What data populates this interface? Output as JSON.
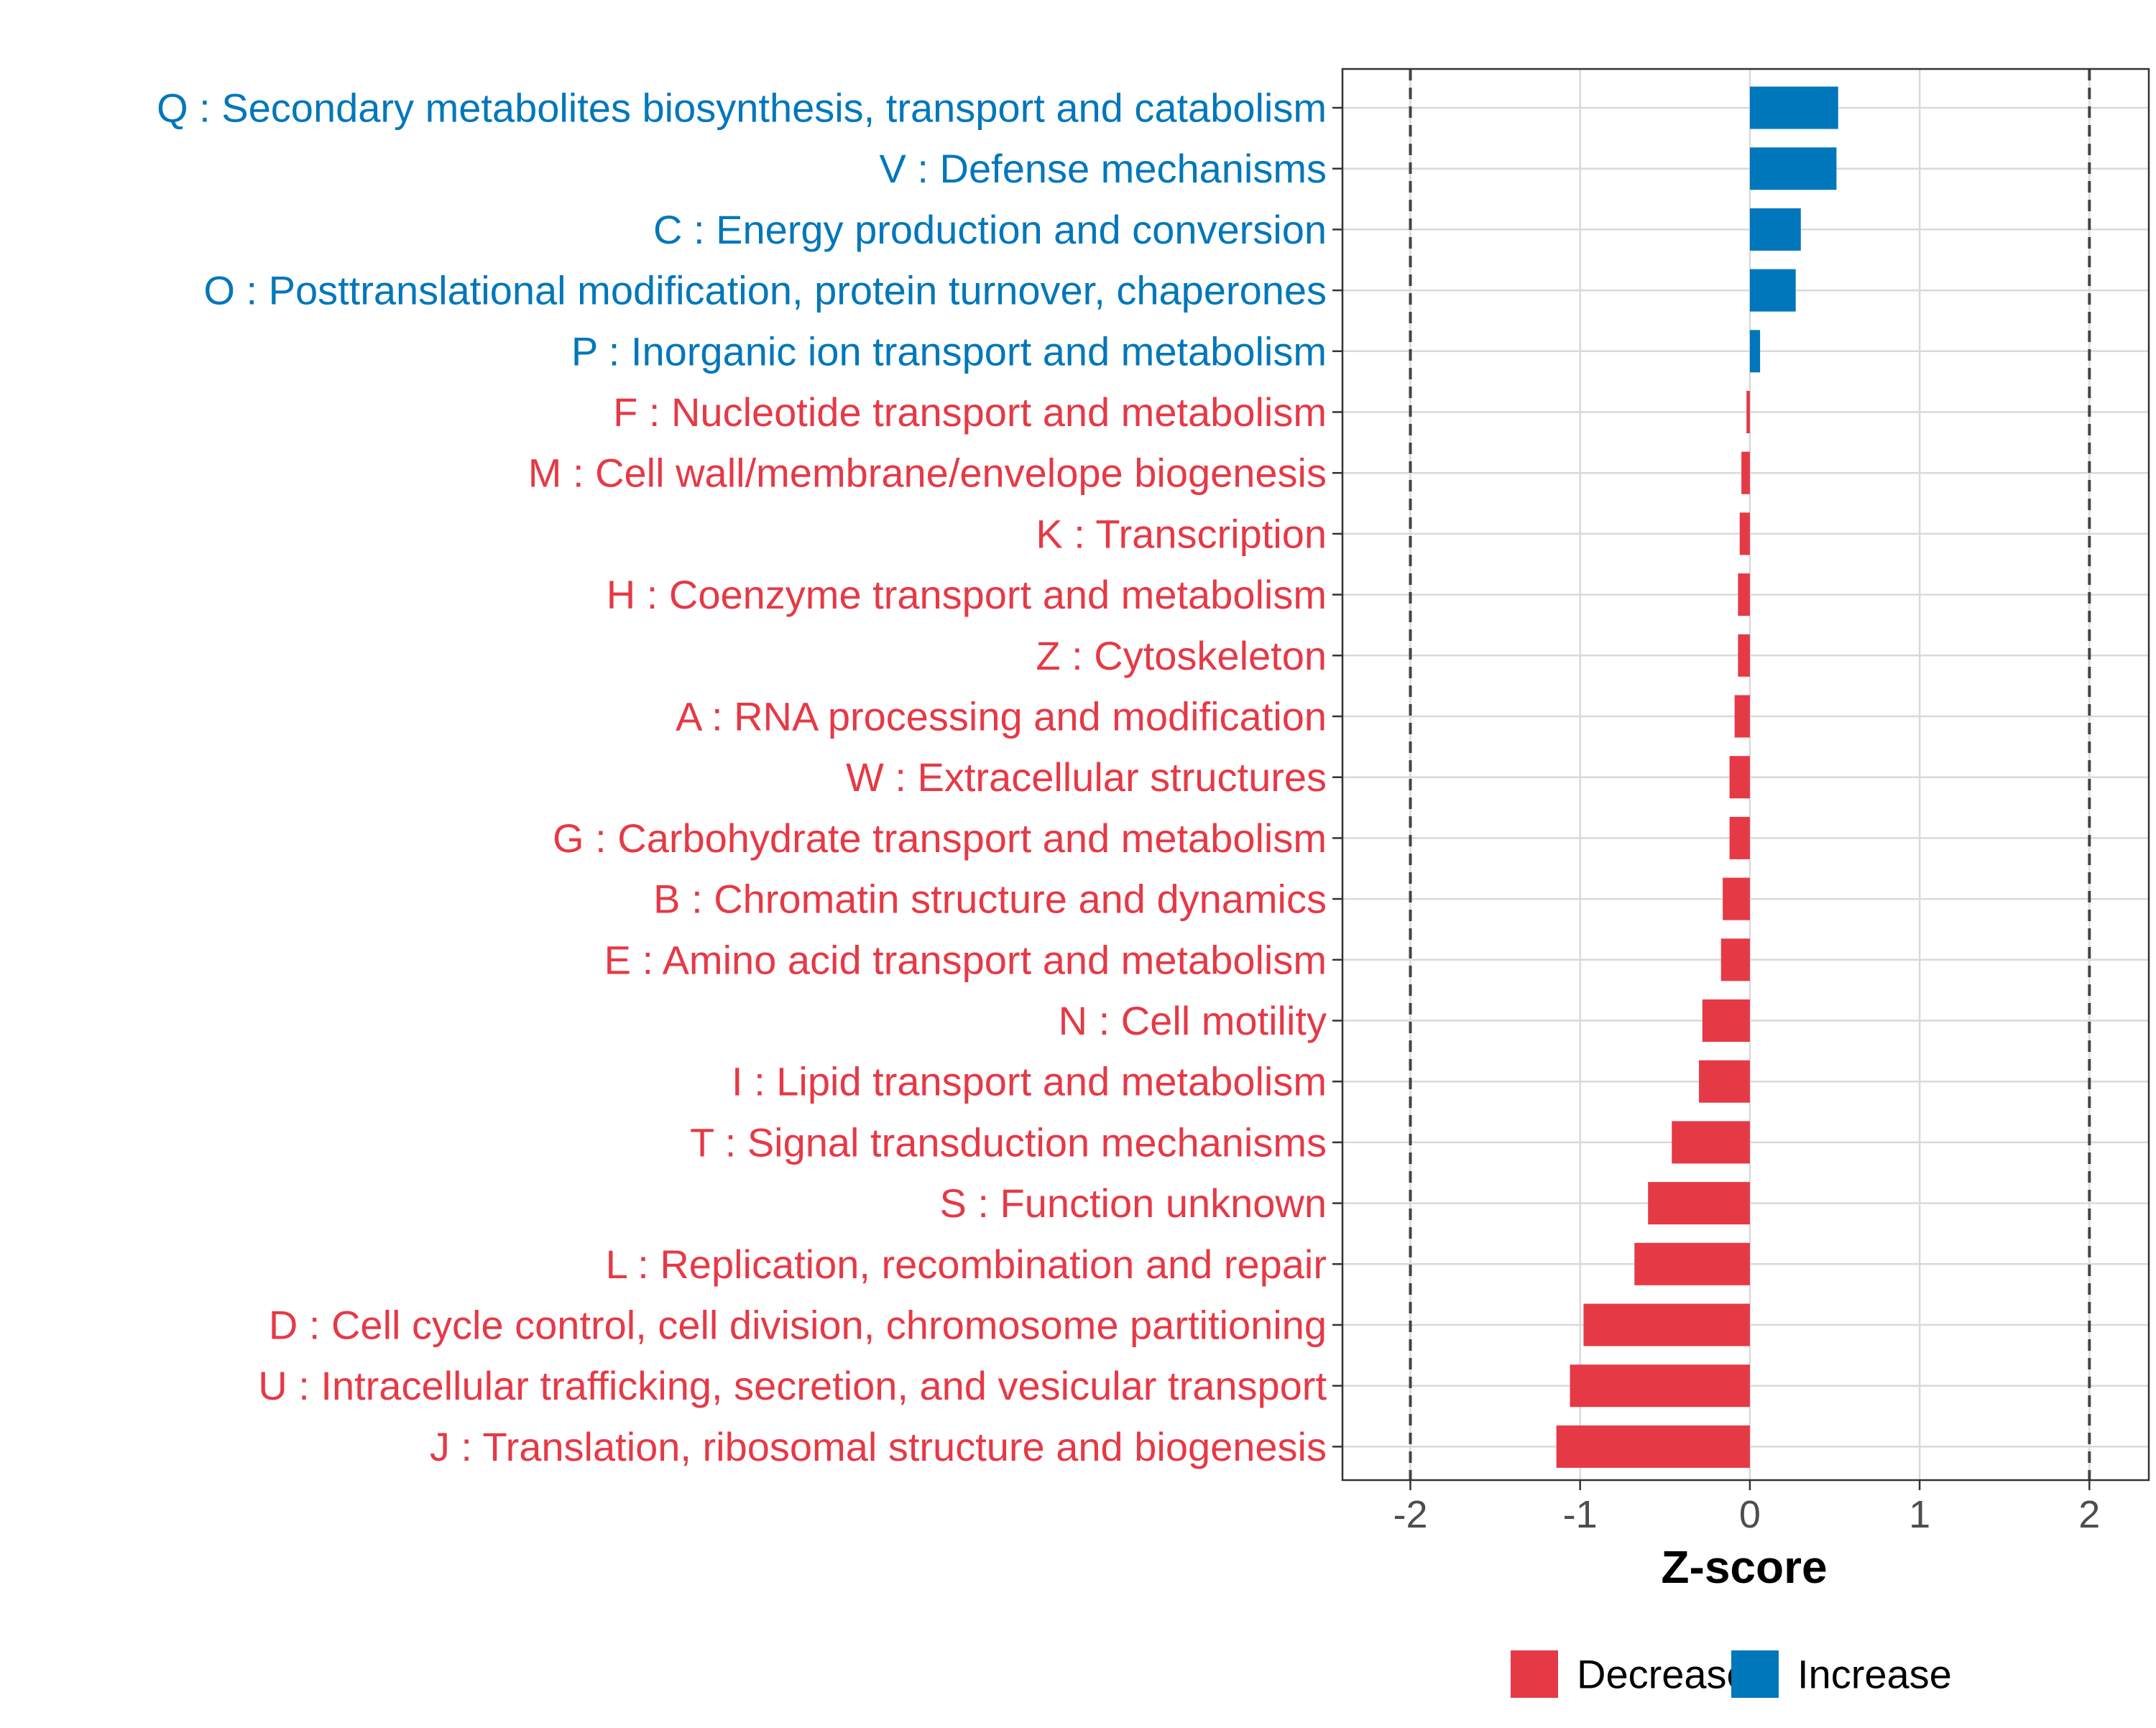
{
  "chart_data": {
    "type": "bar",
    "orientation": "horizontal",
    "title": "",
    "xlabel": "Z-score",
    "ylabel": "",
    "xlim": [
      -2.4,
      2.35
    ],
    "xticks": [
      -2,
      -1,
      0,
      1,
      2
    ],
    "xtick_labels": [
      "-2",
      "-1",
      "0",
      "1",
      "2"
    ],
    "threshold_lines": [
      -2,
      2
    ],
    "grid": true,
    "categories": [
      "Q : Secondary metabolites biosynthesis, transport and catabolism",
      "V : Defense mechanisms",
      "C : Energy production and conversion",
      "O : Posttranslational modification, protein turnover, chaperones",
      "P : Inorganic ion transport and metabolism",
      "F : Nucleotide transport and metabolism",
      "M : Cell wall/membrane/envelope biogenesis",
      "K : Transcription",
      "H : Coenzyme transport and metabolism",
      "Z : Cytoskeleton",
      "A : RNA processing and modification",
      "W : Extracellular structures",
      "G : Carbohydrate transport and metabolism",
      "B : Chromatin structure and dynamics",
      "E : Amino acid transport and metabolism",
      "N : Cell motility",
      "I : Lipid transport and metabolism",
      "T : Signal transduction mechanisms",
      "S : Function unknown",
      "L : Replication, recombination and repair",
      "D : Cell cycle control, cell division, chromosome partitioning",
      "U : Intracellular trafficking, secretion, and vesicular transport",
      "J : Translation, ribosomal structure and biogenesis"
    ],
    "values": [
      0.52,
      0.51,
      0.3,
      0.27,
      0.06,
      -0.02,
      -0.05,
      -0.06,
      -0.07,
      -0.07,
      -0.09,
      -0.12,
      -0.12,
      -0.16,
      -0.17,
      -0.28,
      -0.3,
      -0.46,
      -0.6,
      -0.68,
      -0.98,
      -1.06,
      -1.14
    ],
    "groups": [
      "Increase",
      "Increase",
      "Increase",
      "Increase",
      "Increase",
      "Decrease",
      "Decrease",
      "Decrease",
      "Decrease",
      "Decrease",
      "Decrease",
      "Decrease",
      "Decrease",
      "Decrease",
      "Decrease",
      "Decrease",
      "Decrease",
      "Decrease",
      "Decrease",
      "Decrease",
      "Decrease",
      "Decrease",
      "Decrease"
    ],
    "legend": {
      "position": "bottom",
      "entries": [
        {
          "label": "Decrease",
          "color": "#E63946"
        },
        {
          "label": "Increase",
          "color": "#0077BB"
        }
      ]
    },
    "colors": {
      "Decrease": "#E63946",
      "Increase": "#0077BB",
      "grid": "#D9D9D9",
      "tick_text": "#4D4D4D",
      "threshold": "#444444"
    }
  }
}
